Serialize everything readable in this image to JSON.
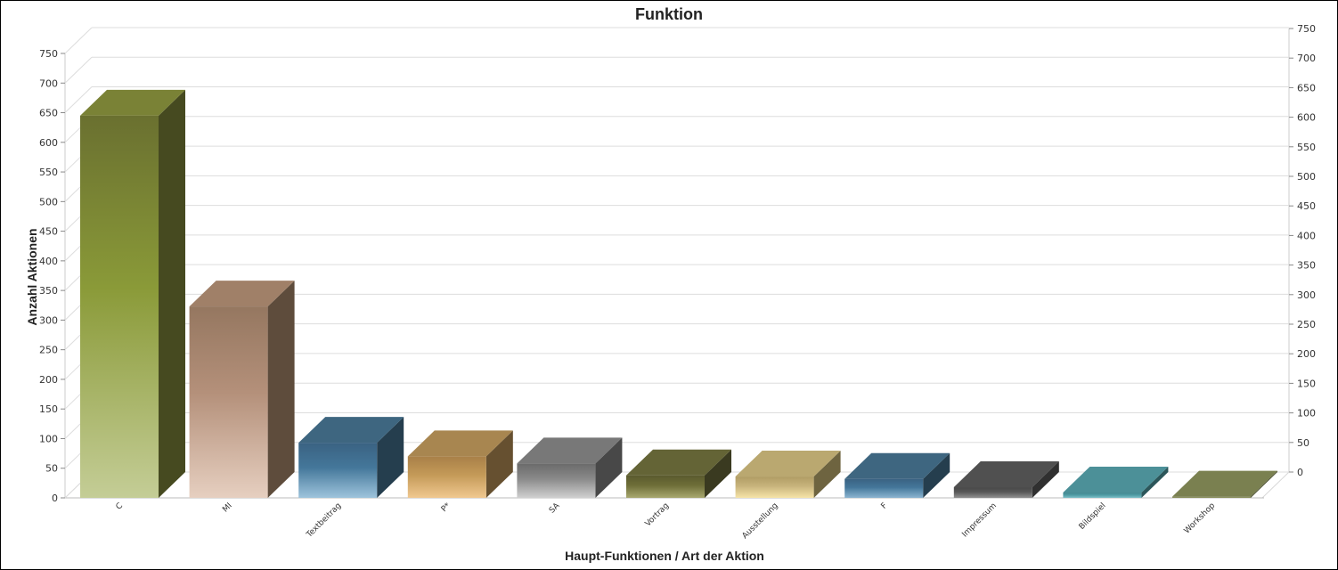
{
  "chart_data": {
    "type": "bar",
    "title": "Funktion",
    "xlabel": "Haupt-Funktionen / Art der Aktion",
    "ylabel": "Anzahl Aktionen",
    "categories": [
      "C",
      "MI",
      "Textbeitrag",
      "P*",
      "SA",
      "Vortrag",
      "Ausstellung",
      "F",
      "Impressum",
      "Bildspiel",
      "Workshop"
    ],
    "values": [
      645,
      323,
      93,
      70,
      58,
      38,
      36,
      32,
      18,
      9,
      2
    ],
    "ylim": [
      0,
      750
    ],
    "yticks": [
      "0",
      "50",
      "100",
      "150",
      "200",
      "250",
      "300",
      "350",
      "400",
      "450",
      "500",
      "550",
      "600",
      "650",
      "700",
      "750"
    ],
    "yticks_right": [
      "0",
      "50",
      "100",
      "150",
      "200",
      "250",
      "300",
      "350",
      "400",
      "450",
      "500",
      "550",
      "600",
      "650",
      "700",
      "750"
    ],
    "grid": true,
    "legend": "none",
    "colors": [
      {
        "top": "#7a8236",
        "side": "#464a20",
        "light": "#c4cd96",
        "mid": "#8a9a38",
        "dark": "#6a7030"
      },
      {
        "top": "#a08068",
        "side": "#5e4c3c",
        "light": "#e6cfc0",
        "mid": "#b4907a",
        "dark": "#957760"
      },
      {
        "top": "#3e6680",
        "side": "#253e4e",
        "light": "#9ec4dc",
        "mid": "#44779a",
        "dark": "#3a6282"
      },
      {
        "top": "#a88650",
        "side": "#665030",
        "light": "#f0c890",
        "mid": "#c49a58",
        "dark": "#a88048"
      },
      {
        "top": "#787878",
        "side": "#484848",
        "light": "#d0d0d0",
        "mid": "#8a8a8a",
        "dark": "#6a6a6a"
      },
      {
        "top": "#646436",
        "side": "#3a3a20",
        "light": "#a8a870",
        "mid": "#6e6e38",
        "dark": "#5a5a2e"
      },
      {
        "top": "#baa870",
        "side": "#6e6440",
        "light": "#f6e4a8",
        "mid": "#c8b47c",
        "dark": "#b09c64"
      },
      {
        "top": "#3e6680",
        "side": "#253e4e",
        "light": "#8cb4d0",
        "mid": "#44779a",
        "dark": "#3a6282"
      },
      {
        "top": "#505050",
        "side": "#303030",
        "light": "#909090",
        "mid": "#585858",
        "dark": "#484848"
      },
      {
        "top": "#4c9098",
        "side": "#2c565a",
        "light": "#7cc0c8",
        "mid": "#4e9aa2",
        "dark": "#448890"
      },
      {
        "top": "#7a8050",
        "side": "#4a4e30",
        "light": "#9aa068",
        "mid": "#7e8452",
        "dark": "#6e7448"
      }
    ]
  }
}
